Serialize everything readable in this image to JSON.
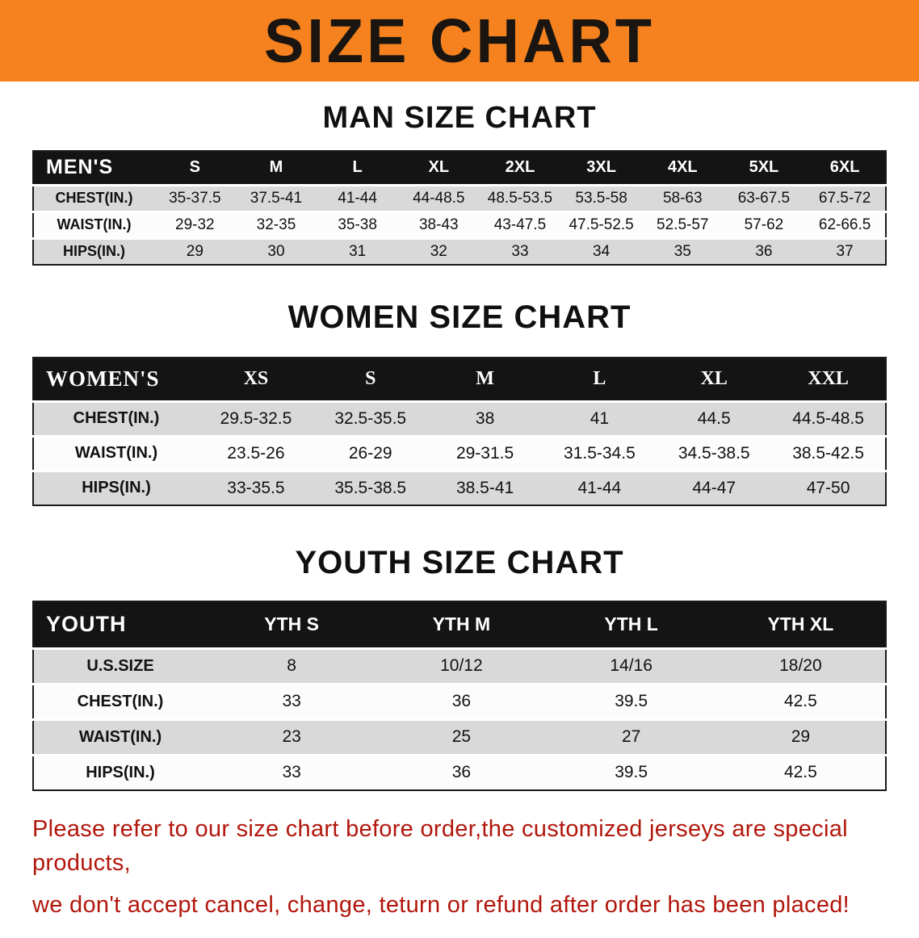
{
  "banner": {
    "title": "SIZE CHART"
  },
  "men": {
    "heading": "MAN SIZE CHART",
    "table": {
      "header": [
        "MEN'S",
        "S",
        "M",
        "L",
        "XL",
        "2XL",
        "3XL",
        "4XL",
        "5XL",
        "6XL"
      ],
      "rows": [
        [
          "CHEST(IN.)",
          "35-37.5",
          "37.5-41",
          "41-44",
          "44-48.5",
          "48.5-53.5",
          "53.5-58",
          "58-63",
          "63-67.5",
          "67.5-72"
        ],
        [
          "WAIST(IN.)",
          "29-32",
          "32-35",
          "35-38",
          "38-43",
          "43-47.5",
          "47.5-52.5",
          "52.5-57",
          "57-62",
          "62-66.5"
        ],
        [
          "HIPS(IN.)",
          "29",
          "30",
          "31",
          "32",
          "33",
          "34",
          "35",
          "36",
          "37"
        ]
      ]
    }
  },
  "women": {
    "heading": "WOMEN SIZE CHART",
    "table": {
      "header": [
        "WOMEN'S",
        "XS",
        "S",
        "M",
        "L",
        "XL",
        "XXL"
      ],
      "rows": [
        [
          "CHEST(IN.)",
          "29.5-32.5",
          "32.5-35.5",
          "38",
          "41",
          "44.5",
          "44.5-48.5"
        ],
        [
          "WAIST(IN.)",
          "23.5-26",
          "26-29",
          "29-31.5",
          "31.5-34.5",
          "34.5-38.5",
          "38.5-42.5"
        ],
        [
          "HIPS(IN.)",
          "33-35.5",
          "35.5-38.5",
          "38.5-41",
          "41-44",
          "44-47",
          "47-50"
        ]
      ]
    }
  },
  "youth": {
    "heading": "YOUTH SIZE CHART",
    "table": {
      "header": [
        "YOUTH",
        "YTH S",
        "YTH M",
        "YTH L",
        "YTH XL"
      ],
      "rows": [
        [
          "U.S.SIZE",
          "8",
          "10/12",
          "14/16",
          "18/20"
        ],
        [
          "CHEST(IN.)",
          "33",
          "36",
          "39.5",
          "42.5"
        ],
        [
          "WAIST(IN.)",
          "23",
          "25",
          "27",
          "29"
        ],
        [
          "HIPS(IN.)",
          "33",
          "36",
          "39.5",
          "42.5"
        ]
      ]
    }
  },
  "disclaimer": {
    "line1": "Please refer to our size chart before order,the customized jerseys are special products,",
    "line2": "we don't accept cancel, change, teturn or refund after order has been placed!"
  },
  "colors": {
    "banner_bg": "#f5821f",
    "heading_text": "#101010",
    "table_header_bg": "#141414",
    "table_header_text": "#ffffff",
    "row_stripe": "#d9d9d9",
    "disclaimer_text": "#b2170c"
  }
}
